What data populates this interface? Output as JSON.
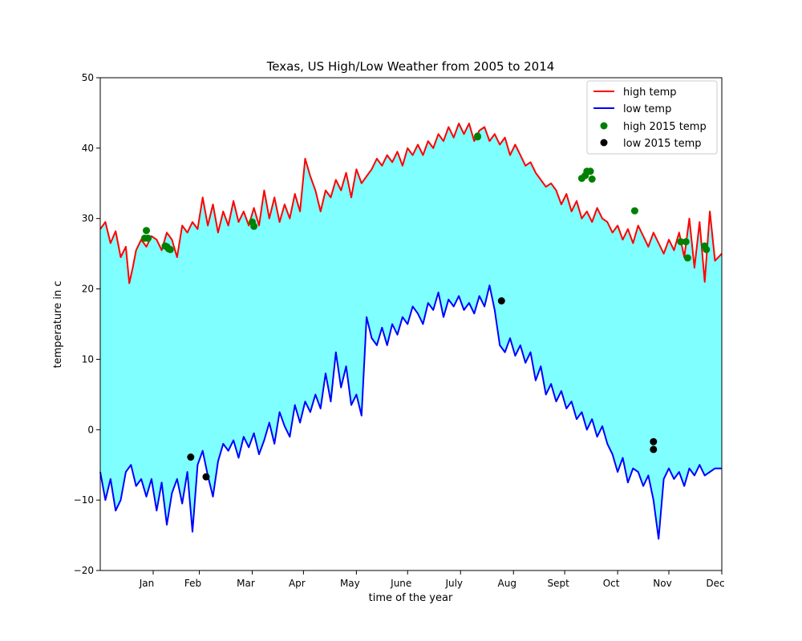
{
  "chart_data": {
    "type": "line",
    "title": "Texas, US High/Low Weather from 2005 to 2014",
    "xlabel": "time of the year",
    "ylabel": "temperature in c",
    "ylim": [
      -20,
      50
    ],
    "yticks": [
      -20,
      -10,
      0,
      10,
      20,
      30,
      40,
      50
    ],
    "xlim": [
      1,
      365
    ],
    "x_tick_positions": [
      32,
      59,
      90,
      120,
      151,
      181,
      212,
      243,
      273,
      304,
      334,
      365
    ],
    "x_tick_labels": [
      "Jan",
      "Feb",
      "Mar",
      "Apr",
      "May",
      "June",
      "July",
      "Aug",
      "Sept",
      "Oct",
      "Nov",
      "Dec"
    ],
    "grid": false,
    "legend_position": "top-right",
    "fill_between": {
      "color": "#00ffff",
      "opacity": 0.5
    },
    "series": [
      {
        "name": "high temp",
        "kind": "line",
        "color": "#ff0000",
        "x": [
          1,
          4,
          7,
          10,
          13,
          16,
          18,
          20,
          22,
          25,
          28,
          31,
          34,
          37,
          40,
          43,
          46,
          49,
          52,
          55,
          58,
          61,
          64,
          67,
          70,
          73,
          76,
          79,
          82,
          85,
          88,
          91,
          94,
          97,
          100,
          103,
          106,
          109,
          112,
          115,
          118,
          121,
          124,
          127,
          130,
          133,
          136,
          139,
          142,
          145,
          148,
          151,
          154,
          157,
          160,
          163,
          166,
          169,
          172,
          175,
          178,
          181,
          184,
          187,
          190,
          193,
          196,
          199,
          202,
          205,
          208,
          211,
          214,
          217,
          220,
          223,
          226,
          229,
          232,
          235,
          238,
          241,
          244,
          247,
          250,
          253,
          256,
          259,
          262,
          265,
          268,
          271,
          274,
          277,
          280,
          283,
          286,
          289,
          292,
          295,
          298,
          301,
          304,
          307,
          310,
          313,
          316,
          319,
          322,
          325,
          328,
          331,
          334,
          337,
          340,
          343,
          346,
          349,
          352,
          355,
          358,
          361,
          365
        ],
        "values": [
          28.5,
          29.5,
          26.5,
          28.2,
          24.5,
          26.0,
          20.8,
          23.0,
          25.5,
          27.0,
          26.0,
          27.5,
          27.0,
          25.5,
          28.0,
          27.0,
          24.5,
          29.0,
          28.0,
          29.5,
          28.5,
          33.0,
          29.0,
          32.0,
          28.0,
          31.0,
          29.0,
          32.5,
          29.5,
          31.0,
          29.0,
          31.5,
          29.0,
          34.0,
          30.0,
          33.0,
          29.5,
          32.0,
          30.0,
          33.5,
          31.0,
          38.5,
          36.0,
          34.0,
          31.0,
          34.0,
          33.0,
          35.5,
          34.0,
          36.5,
          33.0,
          37.0,
          35.0,
          36.0,
          37.0,
          38.5,
          37.5,
          39.0,
          38.0,
          39.5,
          37.5,
          40.0,
          39.0,
          40.5,
          39.0,
          41.0,
          40.0,
          42.0,
          41.0,
          43.0,
          41.5,
          43.5,
          42.0,
          43.5,
          41.0,
          42.5,
          43.0,
          41.0,
          42.0,
          40.5,
          41.5,
          39.0,
          40.5,
          39.0,
          37.5,
          38.0,
          36.5,
          35.5,
          34.5,
          35.0,
          34.0,
          32.0,
          33.5,
          31.0,
          32.5,
          30.0,
          31.0,
          29.5,
          31.5,
          30.0,
          29.5,
          28.0,
          29.0,
          27.0,
          28.5,
          26.5,
          29.0,
          27.5,
          26.0,
          28.0,
          26.5,
          25.0,
          27.0,
          25.5,
          28.0,
          24.5,
          30.0,
          23.0,
          29.5,
          21.0,
          31.0,
          24.0,
          25.0
        ]
      },
      {
        "name": "low temp",
        "kind": "line",
        "color": "#0000ff",
        "x": [
          1,
          4,
          7,
          10,
          13,
          16,
          19,
          22,
          25,
          28,
          31,
          34,
          37,
          40,
          43,
          46,
          49,
          52,
          55,
          58,
          61,
          64,
          67,
          70,
          73,
          76,
          79,
          82,
          85,
          88,
          91,
          94,
          97,
          100,
          103,
          106,
          109,
          112,
          115,
          118,
          121,
          124,
          127,
          130,
          133,
          136,
          139,
          142,
          145,
          148,
          151,
          154,
          157,
          160,
          163,
          166,
          169,
          172,
          175,
          178,
          181,
          184,
          187,
          190,
          193,
          196,
          199,
          202,
          205,
          208,
          211,
          214,
          217,
          220,
          223,
          226,
          229,
          232,
          235,
          238,
          241,
          244,
          247,
          250,
          253,
          256,
          259,
          262,
          265,
          268,
          271,
          274,
          277,
          280,
          283,
          286,
          289,
          292,
          295,
          298,
          301,
          304,
          307,
          310,
          313,
          316,
          319,
          322,
          325,
          328,
          331,
          334,
          337,
          340,
          343,
          346,
          349,
          352,
          355,
          358,
          361,
          365
        ],
        "values": [
          -6.0,
          -10.0,
          -7.0,
          -11.5,
          -10.0,
          -6.0,
          -5.0,
          -8.0,
          -7.0,
          -9.5,
          -7.0,
          -11.5,
          -7.5,
          -13.5,
          -9.0,
          -7.0,
          -10.5,
          -6.0,
          -14.5,
          -5.0,
          -3.0,
          -6.5,
          -9.5,
          -4.5,
          -2.0,
          -3.0,
          -1.5,
          -4.0,
          -1.0,
          -2.5,
          -0.5,
          -3.5,
          -1.5,
          1.0,
          -2.0,
          2.5,
          0.5,
          -1.0,
          3.5,
          1.0,
          4.0,
          2.5,
          5.0,
          3.0,
          8.0,
          4.0,
          11.0,
          6.0,
          9.0,
          3.5,
          5.0,
          2.0,
          16.0,
          13.0,
          12.0,
          14.5,
          12.0,
          15.0,
          13.5,
          16.0,
          15.0,
          17.5,
          16.5,
          15.0,
          18.0,
          17.0,
          19.5,
          16.0,
          18.5,
          17.5,
          19.0,
          17.0,
          18.0,
          16.5,
          19.0,
          17.5,
          20.5,
          17.0,
          12.0,
          11.0,
          13.0,
          10.5,
          12.0,
          9.5,
          11.0,
          7.0,
          9.0,
          5.0,
          6.5,
          4.0,
          5.5,
          3.0,
          4.0,
          1.5,
          2.5,
          0.0,
          1.5,
          -1.0,
          0.5,
          -2.0,
          -3.5,
          -6.0,
          -4.0,
          -7.5,
          -5.5,
          -6.0,
          -8.0,
          -6.5,
          -10.0,
          -15.5,
          -7.0,
          -5.5,
          -7.0,
          -6.0,
          -8.0,
          -5.5,
          -6.5,
          -5.0,
          -6.5,
          -6.0,
          -5.5,
          -5.5
        ]
      },
      {
        "name": "high 2015 temp",
        "kind": "scatter",
        "color": "#008000",
        "points": [
          [
            27,
            27.2
          ],
          [
            28,
            28.3
          ],
          [
            29,
            27.2
          ],
          [
            39,
            26.1
          ],
          [
            40,
            26.0
          ],
          [
            41,
            25.7
          ],
          [
            42,
            25.6
          ],
          [
            90,
            29.5
          ],
          [
            91,
            28.9
          ],
          [
            222,
            41.6
          ],
          [
            222,
            41.7
          ],
          [
            283,
            35.7
          ],
          [
            285,
            36.1
          ],
          [
            286,
            36.7
          ],
          [
            288,
            36.7
          ],
          [
            289,
            35.6
          ],
          [
            314,
            31.1
          ],
          [
            341,
            26.7
          ],
          [
            344,
            26.7
          ],
          [
            345,
            24.4
          ],
          [
            355,
            26.1
          ],
          [
            356,
            25.6
          ]
        ]
      },
      {
        "name": "low 2015 temp",
        "kind": "scatter",
        "color": "#000000",
        "points": [
          [
            54,
            -3.9
          ],
          [
            63,
            -6.7
          ],
          [
            236,
            18.3
          ],
          [
            325,
            -1.7
          ],
          [
            325,
            -2.8
          ]
        ]
      }
    ]
  }
}
